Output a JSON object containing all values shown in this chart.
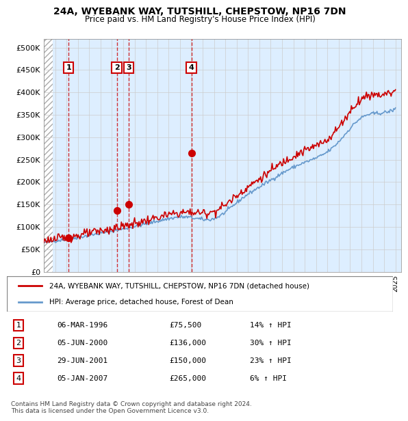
{
  "title": "24A, WYEBANK WAY, TUTSHILL, CHEPSTOW, NP16 7DN",
  "subtitle": "Price paid vs. HM Land Registry's House Price Index (HPI)",
  "ylabel": "",
  "xlim_start": 1994.0,
  "xlim_end": 2025.5,
  "ylim": [
    0,
    520000
  ],
  "yticks": [
    0,
    50000,
    100000,
    150000,
    200000,
    250000,
    300000,
    350000,
    400000,
    450000,
    500000
  ],
  "ytick_labels": [
    "£0",
    "£50K",
    "£100K",
    "£150K",
    "£200K",
    "£250K",
    "£300K",
    "£350K",
    "£400K",
    "£450K",
    "£500K"
  ],
  "sale_dates": [
    1996.18,
    2000.43,
    2001.49,
    2007.01
  ],
  "sale_prices": [
    75500,
    136000,
    150000,
    265000
  ],
  "sale_labels": [
    "1",
    "2",
    "3",
    "4"
  ],
  "property_color": "#cc0000",
  "hpi_color": "#6699cc",
  "legend_property": "24A, WYEBANK WAY, TUTSHILL, CHEPSTOW, NP16 7DN (detached house)",
  "legend_hpi": "HPI: Average price, detached house, Forest of Dean",
  "table_rows": [
    [
      "1",
      "06-MAR-1996",
      "£75,500",
      "14% ↑ HPI"
    ],
    [
      "2",
      "05-JUN-2000",
      "£136,000",
      "30% ↑ HPI"
    ],
    [
      "3",
      "29-JUN-2001",
      "£150,000",
      "23% ↑ HPI"
    ],
    [
      "4",
      "05-JAN-2007",
      "£265,000",
      "6% ↑ HPI"
    ]
  ],
  "footnote": "Contains HM Land Registry data © Crown copyright and database right 2024.\nThis data is licensed under the Open Government Licence v3.0.",
  "bg_hatch_color": "#cccccc",
  "grid_color": "#cccccc",
  "plot_bg_color": "#ddeeff"
}
